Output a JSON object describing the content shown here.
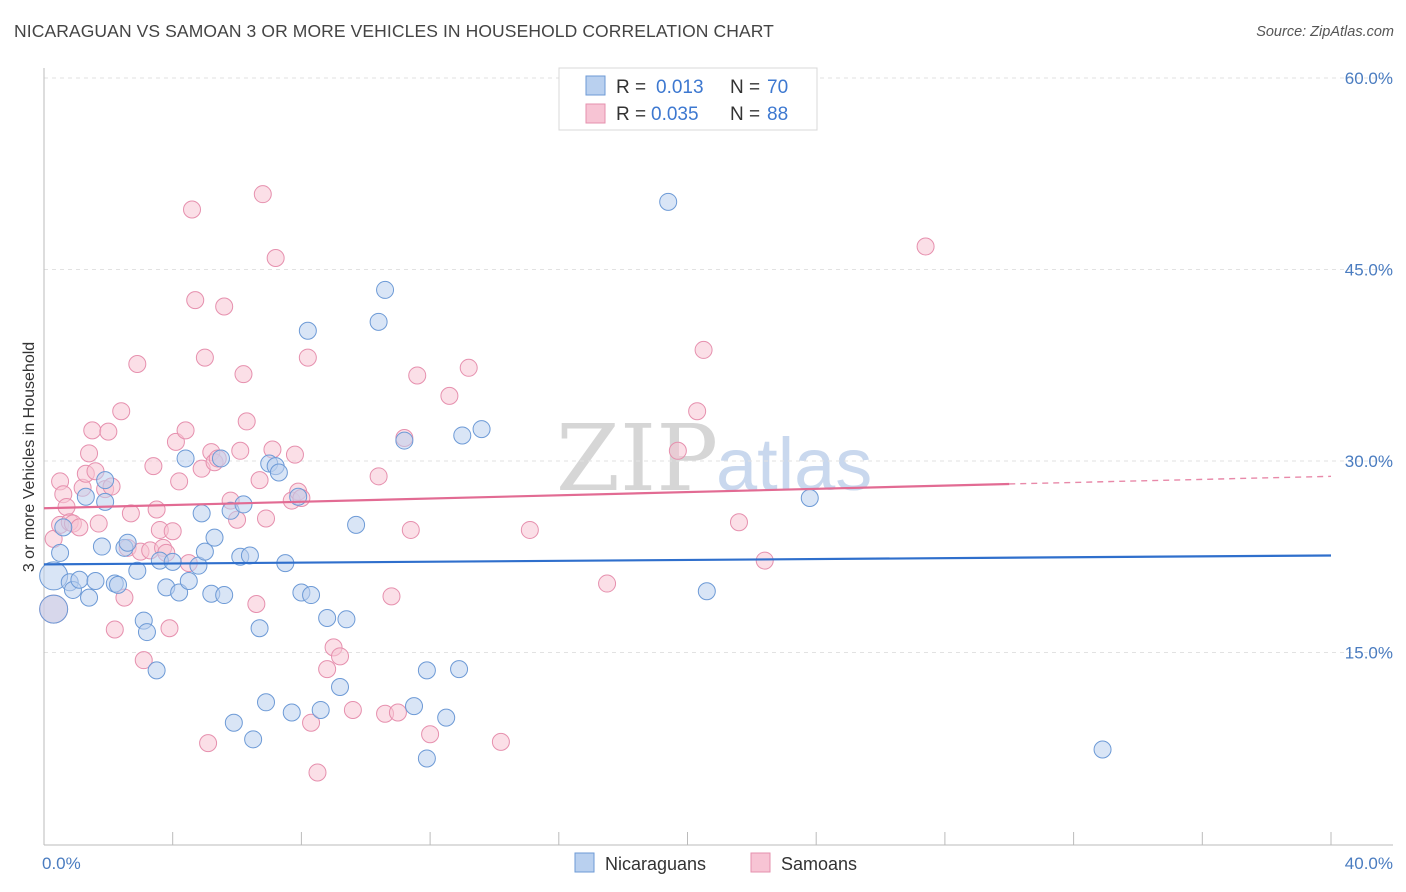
{
  "header": {
    "title": "NICARAGUAN VS SAMOAN 3 OR MORE VEHICLES IN HOUSEHOLD CORRELATION CHART",
    "source": "Source: ZipAtlas.com"
  },
  "watermark": {
    "zip": "ZIP",
    "atlas": "atlas"
  },
  "colors": {
    "blue_fill": "#b9d0ef",
    "blue_stroke": "#6d9ad6",
    "blue_line": "#2f6fcc",
    "pink_fill": "#f7c4d4",
    "pink_stroke": "#e690ae",
    "pink_line": "#e26b93",
    "grid": "#e2e2e2",
    "tick_text": "#4a7cc0"
  },
  "legend": {
    "rows": [
      {
        "r_label": "R =",
        "r_value": "0.013",
        "n_label": "N =",
        "n_value": "70"
      },
      {
        "r_label": "R =",
        "r_value": "0.035",
        "n_label": "N =",
        "n_value": "88"
      }
    ]
  },
  "chart_data": {
    "type": "scatter",
    "title": "NICARAGUAN VS SAMOAN 3 OR MORE VEHICLES IN HOUSEHOLD CORRELATION CHART",
    "xlabel": "",
    "ylabel": "3 or more Vehicles in Household",
    "xlim": [
      0,
      42
    ],
    "ylim": [
      0,
      60
    ],
    "x_tick_labels": {
      "min": "0.0%",
      "max": "40.0%"
    },
    "y_ticks": [
      {
        "value": 15,
        "label": "15.0%"
      },
      {
        "value": 30,
        "label": "30.0%"
      },
      {
        "value": 45,
        "label": "45.0%"
      },
      {
        "value": 60,
        "label": "60.0%"
      }
    ],
    "grid": true,
    "legend_position": "top-center",
    "series": [
      {
        "name": "Nicaraguans",
        "trend": {
          "x0": 0,
          "y0": 21.9,
          "x1": 40,
          "y1": 22.6
        },
        "points": [
          [
            0.3,
            18.4
          ],
          [
            0.3,
            21.0
          ],
          [
            0.5,
            22.8
          ],
          [
            0.6,
            24.8
          ],
          [
            0.8,
            20.5
          ],
          [
            0.9,
            19.9
          ],
          [
            1.1,
            20.7
          ],
          [
            1.3,
            27.2
          ],
          [
            1.4,
            19.3
          ],
          [
            1.6,
            20.6
          ],
          [
            1.8,
            23.3
          ],
          [
            1.9,
            28.5
          ],
          [
            1.9,
            26.8
          ],
          [
            2.2,
            20.4
          ],
          [
            2.3,
            20.3
          ],
          [
            2.5,
            23.2
          ],
          [
            2.6,
            23.6
          ],
          [
            2.9,
            21.4
          ],
          [
            3.1,
            17.5
          ],
          [
            3.2,
            16.6
          ],
          [
            3.5,
            13.6
          ],
          [
            3.6,
            22.2
          ],
          [
            3.8,
            20.1
          ],
          [
            4.0,
            22.1
          ],
          [
            4.2,
            19.7
          ],
          [
            4.4,
            30.2
          ],
          [
            4.5,
            20.6
          ],
          [
            4.8,
            21.8
          ],
          [
            4.9,
            25.9
          ],
          [
            5.0,
            22.9
          ],
          [
            5.2,
            19.6
          ],
          [
            5.3,
            24.0
          ],
          [
            5.5,
            30.2
          ],
          [
            5.6,
            19.5
          ],
          [
            5.8,
            26.1
          ],
          [
            5.9,
            9.5
          ],
          [
            6.1,
            22.5
          ],
          [
            6.2,
            26.6
          ],
          [
            6.4,
            22.6
          ],
          [
            6.5,
            8.2
          ],
          [
            6.7,
            16.9
          ],
          [
            6.9,
            11.1
          ],
          [
            7.0,
            29.8
          ],
          [
            7.2,
            29.6
          ],
          [
            7.3,
            29.1
          ],
          [
            7.5,
            22.0
          ],
          [
            7.7,
            10.3
          ],
          [
            7.9,
            27.2
          ],
          [
            8.0,
            19.7
          ],
          [
            8.2,
            40.2
          ],
          [
            8.3,
            19.5
          ],
          [
            8.6,
            10.5
          ],
          [
            8.8,
            17.7
          ],
          [
            9.2,
            12.3
          ],
          [
            9.4,
            17.6
          ],
          [
            9.7,
            25.0
          ],
          [
            10.4,
            40.9
          ],
          [
            10.6,
            43.4
          ],
          [
            11.2,
            31.6
          ],
          [
            11.5,
            10.8
          ],
          [
            11.9,
            6.7
          ],
          [
            11.9,
            13.6
          ],
          [
            12.5,
            9.9
          ],
          [
            12.9,
            13.7
          ],
          [
            13.0,
            32.0
          ],
          [
            13.6,
            32.5
          ],
          [
            19.4,
            50.3
          ],
          [
            20.6,
            19.8
          ],
          [
            23.8,
            27.1
          ],
          [
            32.9,
            7.4
          ]
        ]
      },
      {
        "name": "Samoans",
        "trend": {
          "x0": 0,
          "y0": 26.3,
          "x1": 30,
          "y1": 28.2
        },
        "trend_dashed": {
          "x0": 30,
          "y0": 28.2,
          "x1": 40,
          "y1": 28.8
        },
        "points": [
          [
            0.3,
            18.4
          ],
          [
            0.3,
            23.9
          ],
          [
            0.5,
            25.0
          ],
          [
            0.5,
            28.4
          ],
          [
            0.6,
            27.4
          ],
          [
            0.7,
            26.4
          ],
          [
            0.8,
            25.2
          ],
          [
            0.9,
            25.1
          ],
          [
            1.1,
            24.8
          ],
          [
            1.2,
            27.9
          ],
          [
            1.3,
            29.0
          ],
          [
            1.4,
            30.6
          ],
          [
            1.5,
            32.4
          ],
          [
            1.6,
            29.2
          ],
          [
            1.7,
            25.1
          ],
          [
            1.9,
            27.8
          ],
          [
            2.0,
            32.3
          ],
          [
            2.1,
            28.0
          ],
          [
            2.2,
            16.8
          ],
          [
            2.4,
            33.9
          ],
          [
            2.5,
            19.3
          ],
          [
            2.6,
            23.2
          ],
          [
            2.7,
            25.9
          ],
          [
            2.9,
            37.6
          ],
          [
            3.0,
            22.9
          ],
          [
            3.1,
            14.4
          ],
          [
            3.3,
            23.0
          ],
          [
            3.4,
            29.6
          ],
          [
            3.5,
            26.2
          ],
          [
            3.6,
            24.6
          ],
          [
            3.7,
            23.2
          ],
          [
            3.8,
            22.8
          ],
          [
            3.9,
            16.9
          ],
          [
            4.0,
            24.5
          ],
          [
            4.1,
            31.5
          ],
          [
            4.2,
            28.4
          ],
          [
            4.4,
            32.4
          ],
          [
            4.5,
            22.0
          ],
          [
            4.6,
            49.7
          ],
          [
            4.7,
            42.6
          ],
          [
            4.9,
            29.4
          ],
          [
            5.0,
            38.1
          ],
          [
            5.1,
            7.9
          ],
          [
            5.2,
            30.7
          ],
          [
            5.3,
            29.9
          ],
          [
            5.4,
            30.2
          ],
          [
            5.6,
            42.1
          ],
          [
            5.8,
            26.9
          ],
          [
            6.0,
            25.4
          ],
          [
            6.1,
            30.8
          ],
          [
            6.2,
            36.8
          ],
          [
            6.3,
            33.1
          ],
          [
            6.6,
            18.8
          ],
          [
            6.7,
            28.5
          ],
          [
            6.8,
            50.9
          ],
          [
            6.9,
            25.5
          ],
          [
            7.1,
            30.9
          ],
          [
            7.2,
            45.9
          ],
          [
            7.7,
            26.9
          ],
          [
            7.8,
            30.5
          ],
          [
            7.9,
            27.6
          ],
          [
            8.0,
            27.1
          ],
          [
            8.2,
            38.1
          ],
          [
            8.3,
            9.5
          ],
          [
            8.5,
            5.6
          ],
          [
            8.8,
            13.7
          ],
          [
            9.0,
            15.4
          ],
          [
            9.2,
            14.7
          ],
          [
            9.6,
            10.5
          ],
          [
            10.4,
            28.8
          ],
          [
            10.6,
            10.2
          ],
          [
            10.8,
            19.4
          ],
          [
            11.0,
            10.3
          ],
          [
            11.2,
            31.8
          ],
          [
            11.4,
            24.6
          ],
          [
            11.6,
            36.7
          ],
          [
            12.0,
            8.6
          ],
          [
            12.6,
            35.1
          ],
          [
            13.2,
            37.3
          ],
          [
            14.2,
            8.0
          ],
          [
            15.1,
            24.6
          ],
          [
            17.5,
            20.4
          ],
          [
            19.7,
            30.8
          ],
          [
            20.3,
            33.9
          ],
          [
            20.5,
            38.7
          ],
          [
            21.6,
            25.2
          ],
          [
            22.4,
            22.2
          ],
          [
            27.4,
            46.8
          ]
        ]
      }
    ]
  },
  "bottom_legend": {
    "items": [
      {
        "label": "Nicaraguans"
      },
      {
        "label": "Samoans"
      }
    ]
  }
}
